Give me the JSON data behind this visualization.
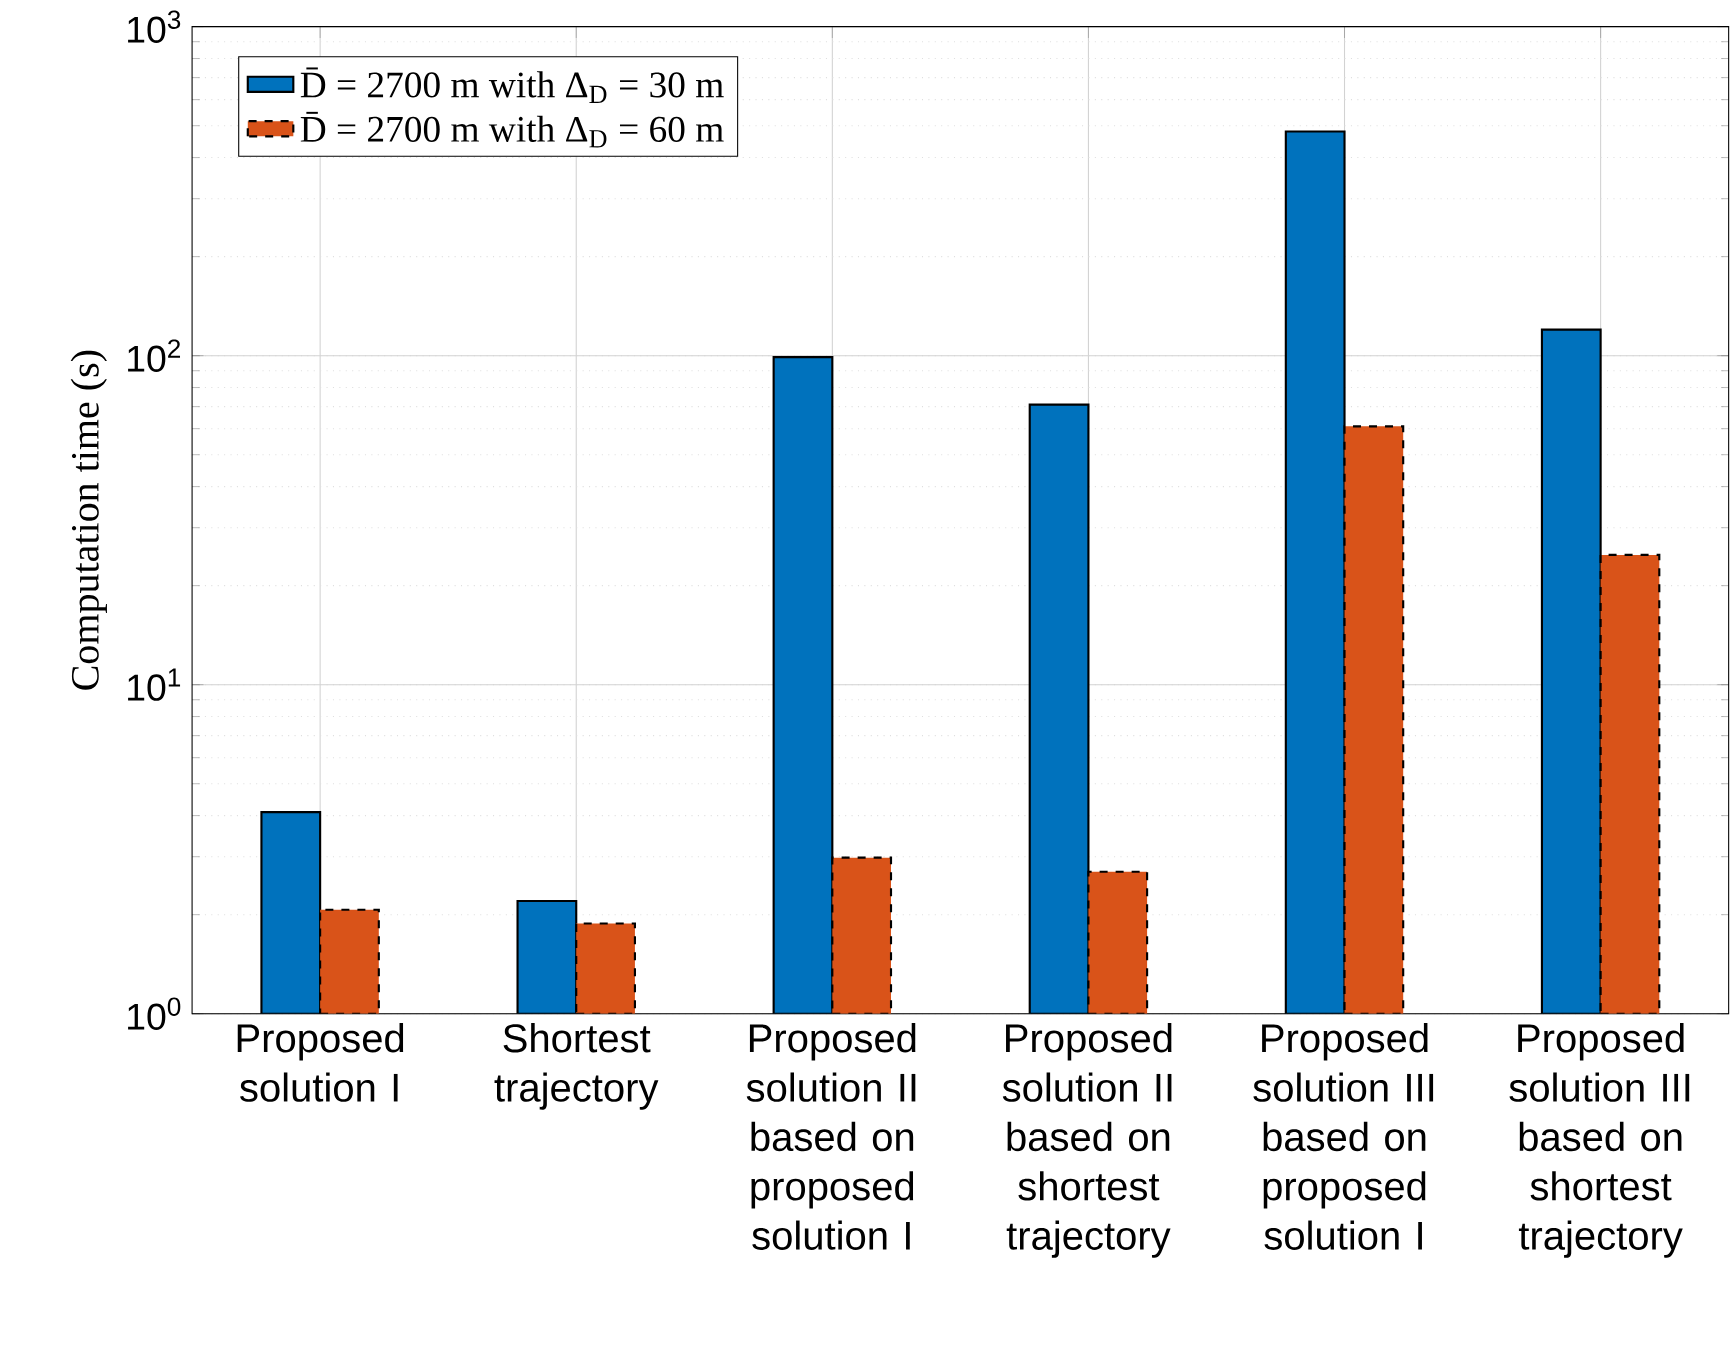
{
  "chart_data": {
    "type": "bar",
    "ylabel": "Computation time (s)",
    "log": "y",
    "grid": true,
    "legend": "top left",
    "categories": [
      "Proposed solution I",
      "Shortest trajectory",
      "Proposed solution II based on proposed solution I",
      "Proposed solution II based on shortest trajectory",
      "Proposed solution III based on proposed solution I",
      "Proposed solution III based on shortest trajectory"
    ],
    "ylim": [
      1,
      1000
    ],
    "yticks": [
      {
        "value": 1,
        "label": "10$^{0}$"
      },
      {
        "value": 10,
        "label": "10$^{1}$"
      },
      {
        "value": 100,
        "label": "10$^{2}$"
      },
      {
        "value": 1000,
        "label": "10$^{3}$"
      }
    ],
    "series": [
      {
        "name": "D̄ = 2700 m with Δ$_{D}$ = 30 m",
        "color": "#0072bd",
        "line_style": "solid",
        "values": [
          4.1,
          2.2,
          99,
          71,
          480,
          120
        ]
      },
      {
        "name": "D̄ = 2700 m with Δ$_{D}$ = 60 m",
        "color": "#d95319",
        "line_style": "dashed",
        "values": [
          2.07,
          1.88,
          2.98,
          2.7,
          61,
          24.8
        ]
      }
    ]
  }
}
